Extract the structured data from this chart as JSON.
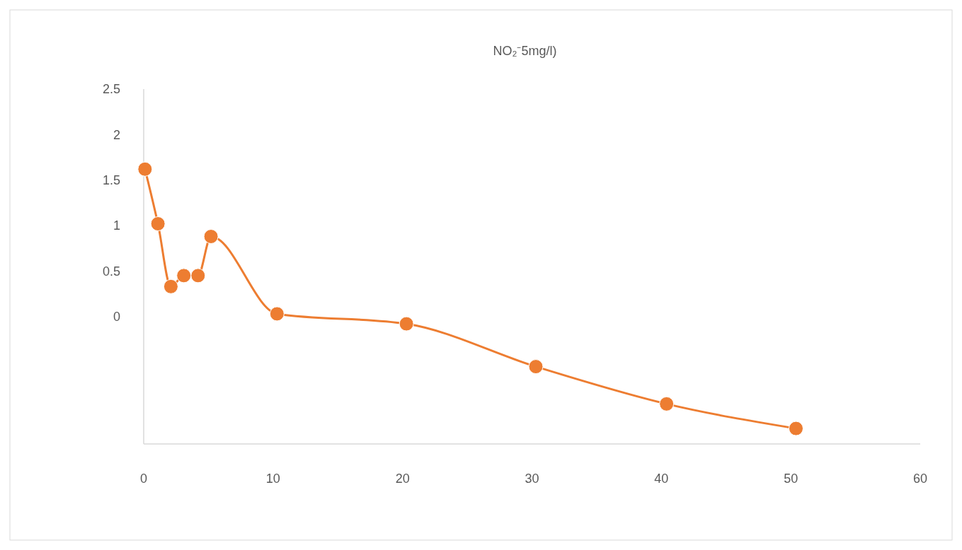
{
  "chart_data": {
    "type": "line",
    "title": "NO₂⁻5mg/l)",
    "x": [
      0.1,
      1.1,
      2.1,
      3.1,
      4.2,
      5.2,
      10.3,
      20.3,
      30.3,
      40.4,
      50.4
    ],
    "series": [
      {
        "color": "#ed7d31",
        "values": [
          1.62,
          1.02,
          0.33,
          0.45,
          0.45,
          0.88,
          0.03,
          -0.08,
          -0.55,
          -0.96,
          -1.23
        ]
      }
    ],
    "xlim": [
      0,
      60
    ],
    "xticks": [
      0,
      10,
      20,
      30,
      40,
      50,
      60
    ],
    "ylim": [
      -1.4,
      2.5
    ],
    "yticks": [
      0,
      0.5,
      1,
      1.5,
      2,
      2.5
    ],
    "marker": "circle",
    "line_style": "solid",
    "grid": false
  }
}
